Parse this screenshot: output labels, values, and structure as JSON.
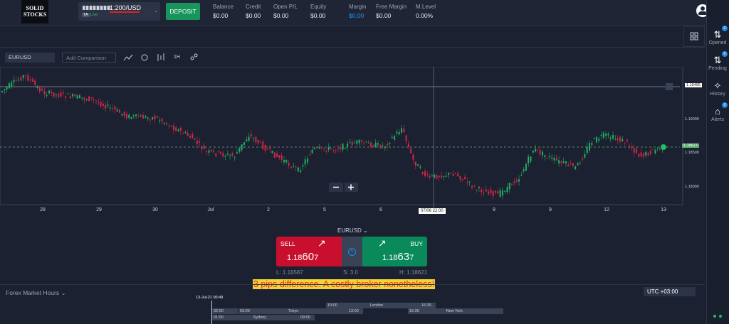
{
  "header": {
    "logo": "SOLID STOCKS",
    "account": "1:200/USD",
    "account_type": "TA",
    "account_mode": "Live",
    "deposit": "DEPOSIT",
    "stats": [
      {
        "label": "Balance",
        "value": "$0.00"
      },
      {
        "label": "Credit",
        "value": "$0.00"
      },
      {
        "label": "Open P/L",
        "value": "$0.00"
      },
      {
        "label": "Equity",
        "value": "$0.00"
      },
      {
        "label": "Margin",
        "value": "$0.00"
      },
      {
        "label": "Free Margin",
        "value": "$0.00"
      },
      {
        "label": "M.Level",
        "value": "0.00%"
      }
    ]
  },
  "sidebar": [
    {
      "label": "Opened",
      "badge": "0"
    },
    {
      "label": "Pending",
      "badge": "0"
    },
    {
      "label": "History"
    },
    {
      "label": "Alerts",
      "badge": "0"
    }
  ],
  "toolbar": {
    "symbol": "EURUSD",
    "comparison_placeholder": "Add Comparison",
    "timeframe": "1H"
  },
  "chart": {
    "price_labels": [
      "1.19495",
      "1.19000",
      "1.18500",
      "1.18000"
    ],
    "current_price": "1.18627",
    "date_labels": [
      "28",
      "29",
      "30",
      "Jul",
      "2",
      "5",
      "6",
      "8",
      "9",
      "12",
      "13"
    ],
    "crosshair_time": "07/06 22:00"
  },
  "trade": {
    "symbol": "EURUSD",
    "sell_label": "SELL",
    "sell_price": [
      "1.18",
      "60",
      "7"
    ],
    "buy_label": "BUY",
    "buy_price": [
      "1.18",
      "63",
      "7"
    ],
    "low": "L: 1.18587",
    "spread": "S: 3.0",
    "high": "H: 1.18621"
  },
  "annotation": "3 pips difference. A costly broker nonetheless!",
  "market_hours": {
    "title": "Forex Market Hours",
    "timezone": "UTC +03:00",
    "now": "13-Jul-21 00:49",
    "sessions": [
      {
        "name": "London",
        "open": "10:00",
        "close": "16:30"
      },
      {
        "name": "Tokyo",
        "open": "03:00",
        "close": "13:00"
      },
      {
        "name": "New York",
        "open": "16:30",
        "close": "02:00"
      },
      {
        "name": "Sydney",
        "open": "01:00",
        "close": "09:00"
      }
    ]
  }
}
